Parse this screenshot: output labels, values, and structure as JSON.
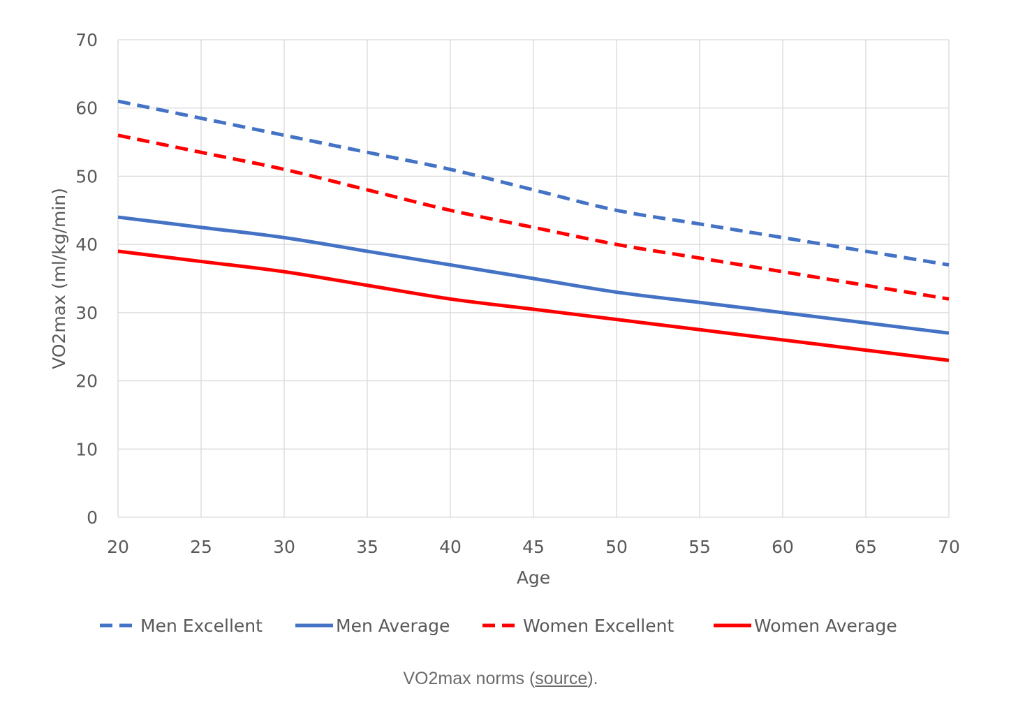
{
  "chart_data": {
    "type": "line",
    "title": "",
    "xlabel": "Age",
    "ylabel": "VO2max (ml/kg/min)",
    "xlim": [
      20,
      70
    ],
    "ylim": [
      0,
      70
    ],
    "xticks": [
      20,
      25,
      30,
      35,
      40,
      45,
      50,
      55,
      60,
      65,
      70
    ],
    "yticks": [
      0,
      10,
      20,
      30,
      40,
      50,
      60,
      70
    ],
    "grid": true,
    "legend_position": "bottom",
    "x": [
      20,
      25,
      30,
      35,
      40,
      45,
      50,
      55,
      60,
      65,
      70
    ],
    "series": [
      {
        "name": "Men Excellent",
        "color": "#4472C4",
        "dash": true,
        "values": [
          61,
          58.5,
          56,
          53.5,
          51,
          48,
          45,
          43,
          41,
          39,
          37
        ]
      },
      {
        "name": "Men Average",
        "color": "#4472C4",
        "dash": false,
        "values": [
          44,
          42.5,
          41,
          39,
          37,
          35,
          33,
          31.5,
          30,
          28.5,
          27
        ]
      },
      {
        "name": "Women Excellent",
        "color": "#FF0000",
        "dash": true,
        "values": [
          56,
          53.5,
          51,
          48,
          45,
          42.5,
          40,
          38,
          36,
          34,
          32
        ]
      },
      {
        "name": "Women Average",
        "color": "#FF0000",
        "dash": false,
        "values": [
          39,
          37.5,
          36,
          34,
          32,
          30.5,
          29,
          27.5,
          26,
          24.5,
          23
        ]
      }
    ]
  },
  "caption": {
    "prefix": "VO2max norms (",
    "link": "source",
    "suffix": ")."
  }
}
